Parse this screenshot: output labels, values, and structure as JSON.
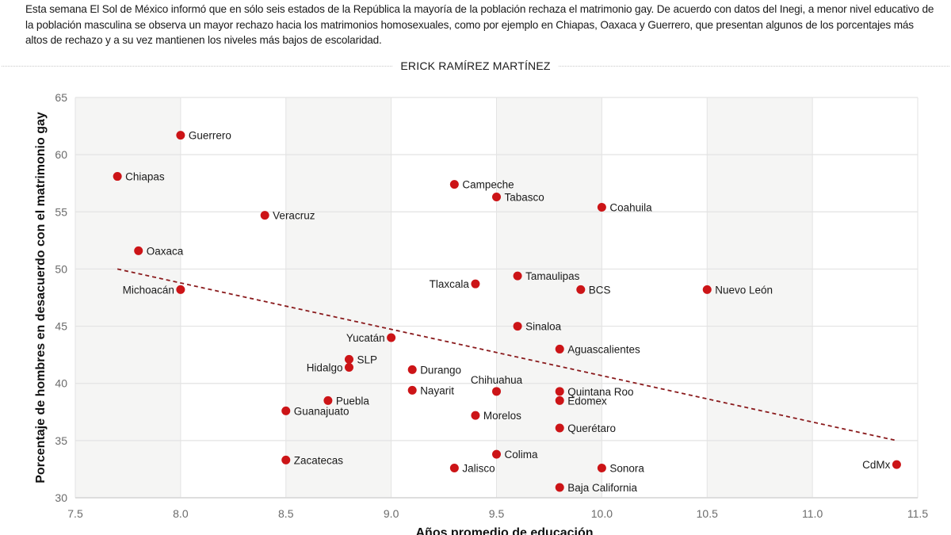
{
  "header": {
    "intro_text": "Esta semana El Sol de México informó que en sólo seis estados de la República la mayoría de la población rechaza el matrimonio gay. De acuerdo con datos del Inegi, a menor nivel educativo de la población masculina se observa un mayor rechazo hacia los matrimonios homosexuales, como por ejemplo en Chiapas, Oaxaca y Guerrero, que presentan algunos de los porcentajes más altos de rechazo y a su vez mantienen los niveles más bajos de escolaridad.",
    "byline": "ERICK RAMÍREZ MARTÍNEZ"
  },
  "colors": {
    "point": "#cc1417",
    "trend": "#8a1a1c",
    "band": "#f5f5f4",
    "grid": "#e3e3e3"
  },
  "chart_data": {
    "type": "scatter",
    "title": "",
    "xlabel": "Años promedio de educación",
    "ylabel": "Porcentaje de hombres en desacuerdo con el matrimonio gay",
    "xlim": [
      7.5,
      11.5
    ],
    "ylim": [
      30,
      65
    ],
    "x_ticks": [
      "7.5",
      "8.0",
      "8.5",
      "9.0",
      "9.5",
      "10.0",
      "10.5",
      "11.0",
      "11.5"
    ],
    "y_ticks": [
      "30",
      "35",
      "40",
      "45",
      "50",
      "55",
      "60",
      "65"
    ],
    "grid": true,
    "alternating_column_bands": true,
    "points": [
      {
        "label": "Guerrero",
        "x": 8.0,
        "y": 61.7,
        "label_side": "right"
      },
      {
        "label": "Chiapas",
        "x": 7.7,
        "y": 58.1,
        "label_side": "right"
      },
      {
        "label": "Veracruz",
        "x": 8.4,
        "y": 54.7,
        "label_side": "right"
      },
      {
        "label": "Oaxaca",
        "x": 7.8,
        "y": 51.6,
        "label_side": "right"
      },
      {
        "label": "Michoacán",
        "x": 8.0,
        "y": 48.2,
        "label_side": "left"
      },
      {
        "label": "Campeche",
        "x": 9.3,
        "y": 57.4,
        "label_side": "right"
      },
      {
        "label": "Tabasco",
        "x": 9.5,
        "y": 56.3,
        "label_side": "right"
      },
      {
        "label": "Coahuila",
        "x": 10.0,
        "y": 55.4,
        "label_side": "right"
      },
      {
        "label": "Tlaxcala",
        "x": 9.4,
        "y": 48.7,
        "label_side": "left"
      },
      {
        "label": "Tamaulipas",
        "x": 9.6,
        "y": 49.4,
        "label_side": "right"
      },
      {
        "label": "BCS",
        "x": 9.9,
        "y": 48.2,
        "label_side": "right"
      },
      {
        "label": "Nuevo León",
        "x": 10.5,
        "y": 48.2,
        "label_side": "right"
      },
      {
        "label": "Sinaloa",
        "x": 9.6,
        "y": 45.0,
        "label_side": "right"
      },
      {
        "label": "Aguascalientes",
        "x": 9.8,
        "y": 43.0,
        "label_side": "right"
      },
      {
        "label": "Yucatán",
        "x": 9.0,
        "y": 44.0,
        "label_side": "left"
      },
      {
        "label": "SLP",
        "x": 8.8,
        "y": 42.1,
        "label_side": "right"
      },
      {
        "label": "Hidalgo",
        "x": 8.8,
        "y": 41.4,
        "label_side": "left"
      },
      {
        "label": "Durango",
        "x": 9.1,
        "y": 41.2,
        "label_side": "right"
      },
      {
        "label": "Nayarit",
        "x": 9.1,
        "y": 39.4,
        "label_side": "right"
      },
      {
        "label": "Chihuahua",
        "x": 9.5,
        "y": 39.3,
        "label_side": "above"
      },
      {
        "label": "Quintana Roo",
        "x": 9.8,
        "y": 39.3,
        "label_side": "right"
      },
      {
        "label": "Edomex",
        "x": 9.8,
        "y": 38.5,
        "label_side": "right"
      },
      {
        "label": "Puebla",
        "x": 8.7,
        "y": 38.5,
        "label_side": "right"
      },
      {
        "label": "Guanajuato",
        "x": 8.5,
        "y": 37.6,
        "label_side": "right"
      },
      {
        "label": "Morelos",
        "x": 9.4,
        "y": 37.2,
        "label_side": "right"
      },
      {
        "label": "Querétaro",
        "x": 9.8,
        "y": 36.1,
        "label_side": "right"
      },
      {
        "label": "Zacatecas",
        "x": 8.5,
        "y": 33.3,
        "label_side": "right"
      },
      {
        "label": "Colima",
        "x": 9.5,
        "y": 33.8,
        "label_side": "right"
      },
      {
        "label": "Jalisco",
        "x": 9.3,
        "y": 32.6,
        "label_side": "right"
      },
      {
        "label": "Sonora",
        "x": 10.0,
        "y": 32.6,
        "label_side": "right"
      },
      {
        "label": "Baja California",
        "x": 9.8,
        "y": 30.9,
        "label_side": "right"
      },
      {
        "label": "CdMx",
        "x": 11.4,
        "y": 32.9,
        "label_side": "left"
      }
    ],
    "trend_line": {
      "style": "dashed",
      "x": [
        7.7,
        11.4
      ],
      "y": [
        50.0,
        35.0
      ]
    }
  }
}
